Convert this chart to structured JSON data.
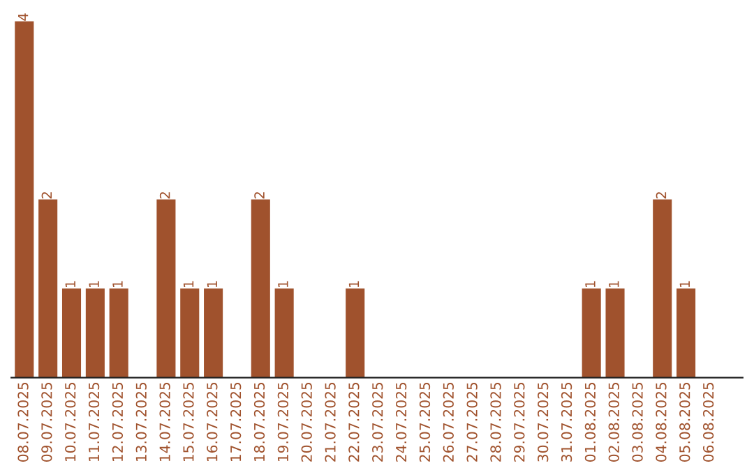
{
  "chart_data": {
    "type": "bar",
    "categories": [
      "08.07.2025",
      "09.07.2025",
      "10.07.2025",
      "11.07.2025",
      "12.07.2025",
      "13.07.2025",
      "14.07.2025",
      "15.07.2025",
      "16.07.2025",
      "17.07.2025",
      "18.07.2025",
      "19.07.2025",
      "20.07.2025",
      "21.07.2025",
      "22.07.2025",
      "23.07.2025",
      "24.07.2025",
      "25.07.2025",
      "26.07.2025",
      "27.07.2025",
      "28.07.2025",
      "29.07.2025",
      "30.07.2025",
      "31.07.2025",
      "01.08.2025",
      "02.08.2025",
      "03.08.2025",
      "04.08.2025",
      "05.08.2025",
      "06.08.2025"
    ],
    "values": [
      4,
      2,
      1,
      1,
      1,
      0,
      2,
      1,
      1,
      0,
      2,
      1,
      0,
      0,
      1,
      0,
      0,
      0,
      0,
      0,
      0,
      0,
      0,
      0,
      1,
      1,
      0,
      2,
      1,
      0
    ],
    "value_labels": [
      "4",
      "2",
      "1",
      "1",
      "1",
      null,
      "2",
      "1",
      "1",
      null,
      "2",
      "1",
      null,
      null,
      "1",
      null,
      null,
      null,
      null,
      null,
      null,
      null,
      null,
      null,
      "1",
      "1",
      null,
      "2",
      "1",
      null
    ],
    "color": "#a0522d",
    "tick_labels": "x",
    "grid": false,
    "legend": false
  }
}
